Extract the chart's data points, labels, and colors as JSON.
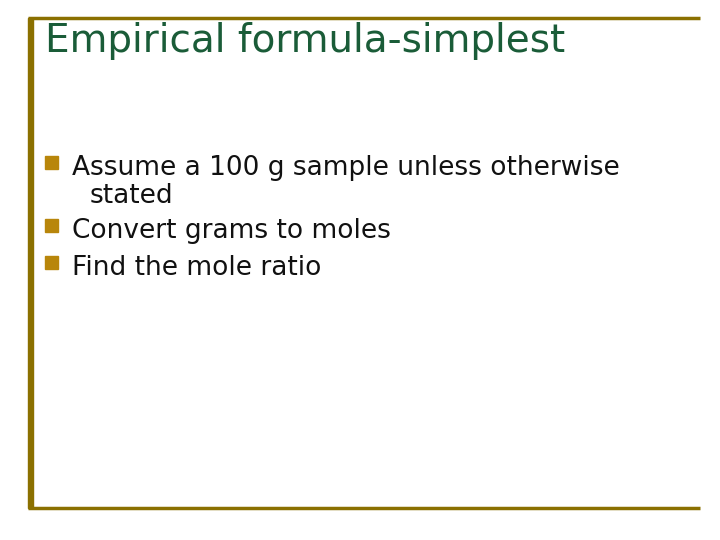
{
  "title": "Empirical formula-simplest",
  "title_color": "#1a5c38",
  "title_fontsize": 28,
  "background_color": "#ffffff",
  "border_color": "#8B7000",
  "left_bar_color": "#8B7000",
  "bullet_color": "#B8860B",
  "bullet_items_line1": [
    "Assume a 100 g sample unless otherwise",
    "Convert grams to moles",
    "Find the mole ratio"
  ],
  "bullet_items_line2": [
    "stated",
    "",
    ""
  ],
  "bullet_fontsize": 19,
  "text_color": "#111111",
  "fig_width": 7.2,
  "fig_height": 5.4,
  "dpi": 100
}
